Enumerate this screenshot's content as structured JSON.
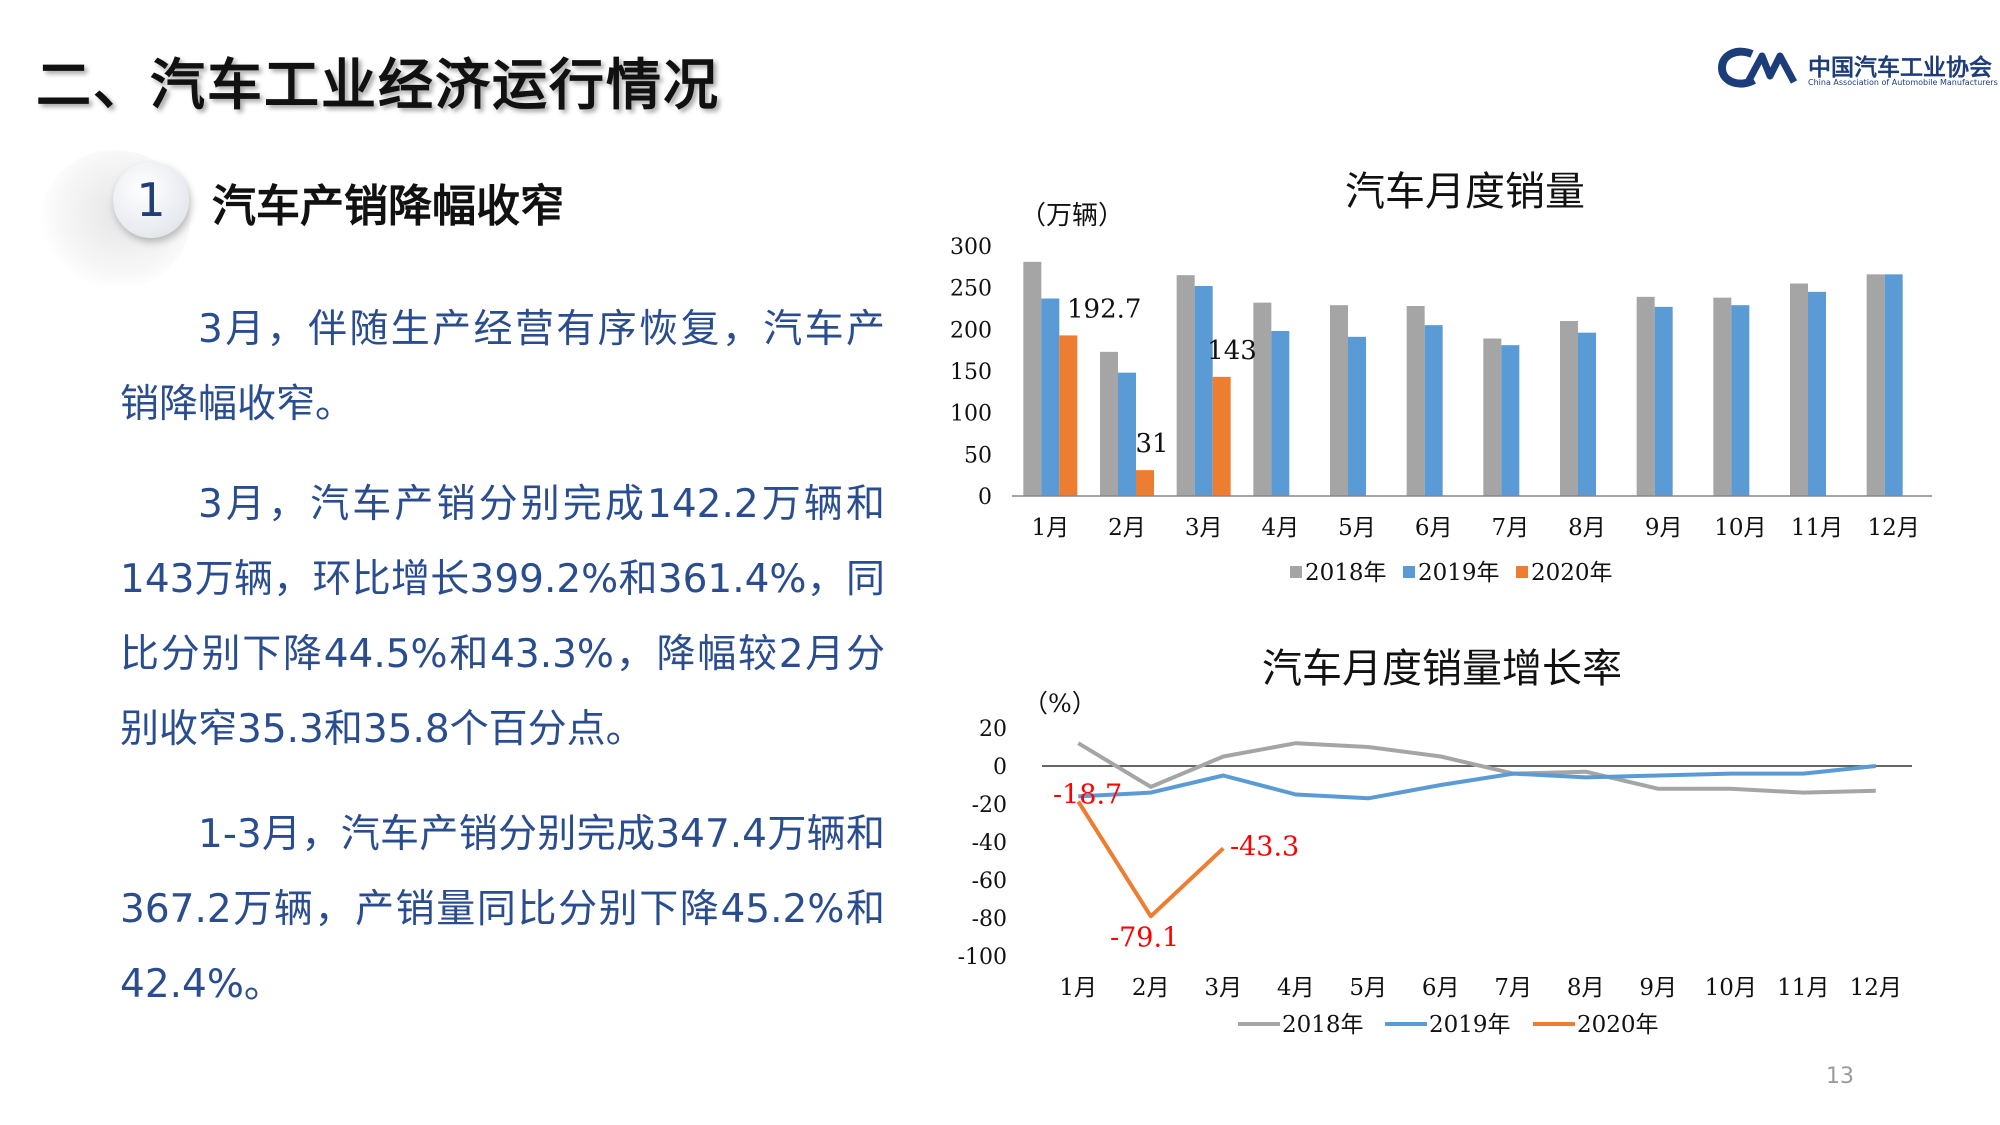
{
  "slide": {
    "title": "二、汽车工业经济运行情况",
    "section_number": "1",
    "section_heading": "汽车产销降幅收窄",
    "page_number": "13"
  },
  "logo": {
    "brand_cn": "中国汽车工业协会",
    "brand_en": "China Association of Automobile Manufacturers",
    "brand_color": "#1d3d7a"
  },
  "paragraphs": [
    "3月，伴随生产经营有序恢复，汽车产销降幅收窄。",
    "3月，汽车产销分别完成142.2万辆和143万辆，环比增长399.2%和361.4%，同比分别下降44.5%和43.3%，降幅较2月分别收窄35.3和35.8个百分点。",
    "1-3月，汽车产销分别完成347.4万辆和367.2万辆，产销量同比分别下降45.2%和42.4%。"
  ],
  "colors": {
    "s2018": "#a5a5a5",
    "s2019": "#5b9bd5",
    "s2020": "#ed7d31",
    "label_red": "#ff0000",
    "text_blue": "#2a4d8f"
  },
  "chart_data": [
    {
      "type": "bar",
      "title": "汽车月度销量",
      "ylabel": "（万辆）",
      "ylim": [
        0,
        300
      ],
      "yticks": [
        300,
        250,
        200,
        150,
        100,
        50,
        0
      ],
      "categories": [
        "1月",
        "2月",
        "3月",
        "4月",
        "5月",
        "6月",
        "7月",
        "8月",
        "9月",
        "10月",
        "11月",
        "12月"
      ],
      "series": [
        {
          "name": "2018年",
          "values": [
            281,
            173,
            265,
            232,
            229,
            228,
            189,
            210,
            239,
            238,
            255,
            266
          ]
        },
        {
          "name": "2019年",
          "values": [
            237,
            148,
            252,
            198,
            191,
            205,
            181,
            196,
            227,
            229,
            245,
            266
          ]
        },
        {
          "name": "2020年",
          "values": [
            192.7,
            31,
            143,
            null,
            null,
            null,
            null,
            null,
            null,
            null,
            null,
            null
          ]
        }
      ],
      "data_labels": [
        "192.7",
        "31",
        "143"
      ],
      "legend_position": "bottom"
    },
    {
      "type": "line",
      "title": "汽车月度销量增长率",
      "ylabel": "（%）",
      "ylim": [
        -100,
        20
      ],
      "yticks": [
        20,
        0,
        -20,
        -40,
        -60,
        -80,
        -100
      ],
      "categories": [
        "1月",
        "2月",
        "3月",
        "4月",
        "5月",
        "6月",
        "7月",
        "8月",
        "9月",
        "10月",
        "11月",
        "12月"
      ],
      "series": [
        {
          "name": "2018年",
          "values": [
            12,
            -11,
            5,
            12,
            10,
            5,
            -4,
            -3,
            -12,
            -12,
            -14,
            -13
          ]
        },
        {
          "name": "2019年",
          "values": [
            -16,
            -14,
            -5,
            -15,
            -17,
            -10,
            -4,
            -6,
            -5,
            -4,
            -4,
            0
          ]
        },
        {
          "name": "2020年",
          "values": [
            -18.7,
            -79.1,
            -43.3,
            null,
            null,
            null,
            null,
            null,
            null,
            null,
            null,
            null
          ]
        }
      ],
      "data_labels": [
        "-18.7",
        "-79.1",
        "-43.3"
      ],
      "legend_position": "bottom"
    }
  ]
}
